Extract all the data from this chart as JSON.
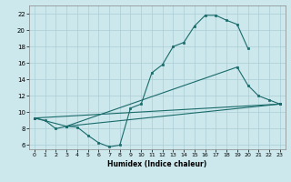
{
  "xlabel": "Humidex (Indice chaleur)",
  "bg_color": "#cce8ec",
  "grid_color": "#aacdd4",
  "line_color": "#1a6b6b",
  "xlim": [
    -0.5,
    23.5
  ],
  "ylim": [
    5.5,
    23.0
  ],
  "xticks": [
    0,
    1,
    2,
    3,
    4,
    5,
    6,
    7,
    8,
    9,
    10,
    11,
    12,
    13,
    14,
    15,
    16,
    17,
    18,
    19,
    20,
    21,
    22,
    23
  ],
  "yticks": [
    6,
    8,
    10,
    12,
    14,
    16,
    18,
    20,
    22
  ],
  "line1_x": [
    0,
    1,
    2,
    3,
    4,
    5,
    6,
    7,
    8,
    9,
    10,
    11,
    12,
    13,
    14,
    15,
    16,
    17,
    18,
    19,
    20
  ],
  "line1_y": [
    9.3,
    9.0,
    8.0,
    8.3,
    8.2,
    7.2,
    6.3,
    5.8,
    6.0,
    10.5,
    11.0,
    14.8,
    15.8,
    18.0,
    18.5,
    20.5,
    21.8,
    21.8,
    21.2,
    20.7,
    17.8
  ],
  "line2_x": [
    0,
    3,
    19,
    20,
    21,
    22,
    23
  ],
  "line2_y": [
    9.3,
    8.3,
    15.5,
    13.3,
    12.0,
    11.5,
    11.0
  ],
  "line3_x": [
    0,
    23
  ],
  "line3_y": [
    9.3,
    11.0
  ],
  "line4_x": [
    3,
    23
  ],
  "line4_y": [
    8.3,
    11.0
  ]
}
